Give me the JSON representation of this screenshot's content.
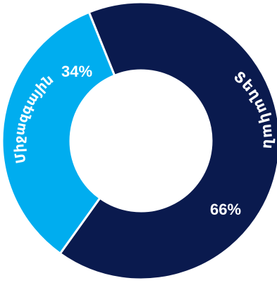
{
  "chart_data": {
    "type": "pie",
    "donut": true,
    "slices": [
      {
        "label": "Տեղական",
        "value": 66,
        "value_label": "66%",
        "color": "#0a1a4e"
      },
      {
        "label": "Միջազգային",
        "value": 34,
        "value_label": "34%",
        "color": "#00adef"
      }
    ]
  }
}
